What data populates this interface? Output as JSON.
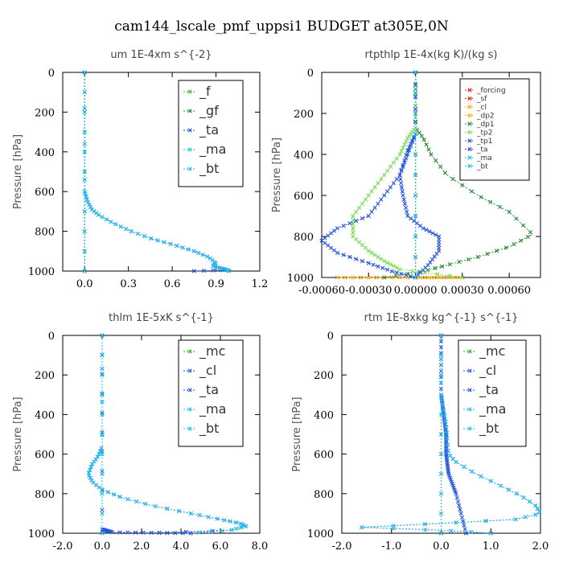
{
  "title": "cam144_lscale_pmf_uppsi1  BUDGET at305E,0N",
  "colors": {
    "green": "#22bb22",
    "blue": "#2255dd",
    "cyan": "#22bbee",
    "red": "#dd2222",
    "orange": "#ffaa00",
    "lightgreen": "#77dd55",
    "darkgreen": "#228833"
  },
  "chart_data": [
    {
      "type": "line",
      "title": "um   1E-4xm s^{-2}",
      "ylabel": "Pressure [hPa]",
      "xlim": [
        -0.15,
        1.2
      ],
      "ylim": [
        1000,
        0
      ],
      "xticks": [
        0.0,
        0.3,
        0.6,
        0.9,
        1.2
      ],
      "xticklabels": [
        "0.0",
        "0.3",
        "0.6",
        "0.9",
        "1.2"
      ],
      "yticks": [
        0,
        200,
        400,
        600,
        800,
        1000
      ],
      "yticklabels": [
        "0",
        "200",
        "400",
        "600",
        "800",
        "1000"
      ],
      "legend_size": "large",
      "series": [
        {
          "name": "_f",
          "color": "green",
          "x": [
            0,
            0
          ],
          "y": [
            0,
            1000
          ]
        },
        {
          "name": "_gf",
          "color": "darkgreen",
          "x": [
            0,
            0
          ],
          "y": [
            0,
            1000
          ]
        },
        {
          "name": "_ta",
          "color": "blue",
          "x": [
            0,
            0,
            0.02,
            0.05,
            0.1,
            0.2,
            0.32,
            0.47,
            0.62,
            0.75,
            0.85,
            0.9,
            0.88,
            0.93,
            0.97,
            0.75
          ],
          "y": [
            0,
            600,
            650,
            690,
            720,
            760,
            800,
            840,
            870,
            900,
            930,
            960,
            975,
            985,
            995,
            1000
          ]
        },
        {
          "name": "_ma",
          "color": "cyan",
          "x": [
            0,
            0
          ],
          "y": [
            0,
            1000
          ]
        },
        {
          "name": "_bt",
          "color": "cyan",
          "x": [
            0,
            0,
            0.02,
            0.05,
            0.1,
            0.2,
            0.32,
            0.47,
            0.62,
            0.75,
            0.85,
            0.9,
            0.88,
            0.93,
            0.98,
            0.99
          ],
          "y": [
            0,
            600,
            650,
            690,
            720,
            760,
            800,
            840,
            870,
            900,
            930,
            960,
            975,
            985,
            995,
            1000
          ]
        }
      ]
    },
    {
      "type": "line",
      "title": "rtpthlp   1E-4x(kg K)/(kg s)",
      "ylabel": "Pressure [hPa]",
      "xlim": [
        -0.0006,
        0.0008
      ],
      "ylim": [
        1000,
        0
      ],
      "xticks": [
        -0.0006,
        -0.0003,
        0,
        0.0003,
        0.0006
      ],
      "xticklabels": [
        "-0.00060",
        "-0.00030",
        "0.00000",
        "0.00030",
        "0.00060"
      ],
      "yticks": [
        0,
        200,
        400,
        600,
        800,
        1000
      ],
      "yticklabels": [
        "0",
        "200",
        "400",
        "600",
        "800",
        "1000"
      ],
      "legend_size": "small",
      "series": [
        {
          "name": "_forcing",
          "color": "red",
          "x": [
            0,
            0
          ],
          "y": [
            0,
            1000
          ]
        },
        {
          "name": "_sf",
          "color": "red",
          "x": [
            0,
            0
          ],
          "y": [
            0,
            1000
          ]
        },
        {
          "name": "_cl",
          "color": "orange",
          "x": [
            -0.0005,
            0,
            0.0003
          ],
          "y": [
            1000,
            1000,
            1000
          ]
        },
        {
          "name": "_dp2",
          "color": "orange",
          "x": [
            0,
            0
          ],
          "y": [
            0,
            1000
          ]
        },
        {
          "name": "_dp1",
          "color": "darkgreen",
          "x": [
            0,
            0,
            5e-05,
            0.0001,
            0.0002,
            0.0004,
            0.0006,
            0.00075,
            0.0006,
            0.0004,
            0.0002,
            5e-05,
            -0.0002
          ],
          "y": [
            0,
            270,
            320,
            400,
            500,
            600,
            680,
            790,
            850,
            900,
            940,
            970,
            1000
          ]
        },
        {
          "name": "_tp2",
          "color": "lightgreen",
          "x": [
            0,
            0,
            -5e-05,
            -0.0001,
            -0.0002,
            -0.0003,
            -0.0004,
            -0.0004,
            -0.0003,
            -0.0002,
            -0.0001,
            0.0003
          ],
          "y": [
            0,
            270,
            320,
            400,
            500,
            600,
            700,
            800,
            870,
            920,
            960,
            1000
          ]
        },
        {
          "name": "_tp1",
          "color": "blue",
          "x": [
            0,
            0,
            -5e-05,
            -0.0001,
            -0.0002,
            -0.0003,
            -0.0005,
            -0.0006,
            -0.0005,
            -0.0003,
            -0.00015,
            0
          ],
          "y": [
            0,
            300,
            400,
            500,
            600,
            700,
            760,
            820,
            880,
            930,
            970,
            1000
          ]
        },
        {
          "name": "_ta",
          "color": "blue",
          "x": [
            0,
            0,
            -5e-05,
            -0.0001,
            -8e-05,
            -5e-05,
            5e-05,
            0.00015,
            0.00015,
            8e-05,
            0
          ],
          "y": [
            0,
            300,
            380,
            500,
            600,
            700,
            760,
            800,
            870,
            940,
            1000
          ]
        },
        {
          "name": "_ma",
          "color": "cyan",
          "x": [
            0,
            0
          ],
          "y": [
            0,
            1000
          ]
        },
        {
          "name": "_bt",
          "color": "cyan",
          "x": [
            0,
            0
          ],
          "y": [
            0,
            1000
          ]
        }
      ]
    },
    {
      "type": "line",
      "title": "thlm   1E-5xK s^{-1}",
      "ylabel": "Pressure [hPa]",
      "xlim": [
        -2.0,
        8.0
      ],
      "ylim": [
        1000,
        0
      ],
      "xticks": [
        -2.0,
        0.0,
        2.0,
        4.0,
        6.0,
        8.0
      ],
      "xticklabels": [
        "-2.0",
        "0.0",
        "2.0",
        "4.0",
        "6.0",
        "8.0"
      ],
      "yticks": [
        0,
        200,
        400,
        600,
        800,
        1000
      ],
      "yticklabels": [
        "0",
        "200",
        "400",
        "600",
        "800",
        "1000"
      ],
      "legend_size": "large",
      "series": [
        {
          "name": "_mc",
          "color": "green",
          "x": [
            0,
            0
          ],
          "y": [
            0,
            1000
          ]
        },
        {
          "name": "_cl",
          "color": "blue",
          "x": [
            0,
            0,
            -0.2,
            -0.5,
            -0.7,
            -0.5,
            0,
            1,
            2.5,
            4.5,
            6,
            7,
            7.3,
            6.5,
            2
          ],
          "y": [
            0,
            560,
            610,
            650,
            700,
            740,
            780,
            820,
            860,
            900,
            930,
            950,
            965,
            985,
            1000
          ]
        },
        {
          "name": "_ta",
          "color": "blue",
          "x": [
            0,
            0,
            0.5,
            4.5
          ],
          "y": [
            0,
            980,
            995,
            1000
          ]
        },
        {
          "name": "_ma",
          "color": "cyan",
          "x": [
            0,
            0
          ],
          "y": [
            0,
            1000
          ]
        },
        {
          "name": "_bt",
          "color": "cyan",
          "x": [
            0,
            0,
            -0.2,
            -0.5,
            -0.7,
            -0.5,
            0,
            1,
            2.5,
            4.5,
            6,
            7,
            7.3,
            6.5,
            4.5
          ],
          "y": [
            0,
            560,
            610,
            650,
            700,
            740,
            780,
            820,
            860,
            900,
            930,
            950,
            965,
            985,
            1000
          ]
        }
      ]
    },
    {
      "type": "line",
      "title": "rtm   1E-8xkg kg^{-1} s^{-1}",
      "ylabel": "Pressure [hPa]",
      "xlim": [
        -2.0,
        2.0
      ],
      "ylim": [
        1000,
        0
      ],
      "xticks": [
        -2.0,
        -1.0,
        0.0,
        1.0,
        2.0
      ],
      "xticklabels": [
        "-2.0",
        "-1.0",
        "0.0",
        "1.0",
        "2.0"
      ],
      "yticks": [
        0,
        200,
        400,
        600,
        800,
        1000
      ],
      "yticklabels": [
        "0",
        "200",
        "400",
        "600",
        "800",
        "1000"
      ],
      "legend_size": "large",
      "series": [
        {
          "name": "_mc",
          "color": "green",
          "x": [
            0,
            0
          ],
          "y": [
            0,
            1000
          ]
        },
        {
          "name": "_cl",
          "color": "blue",
          "x": [
            0,
            0,
            0.05,
            0.1,
            0.12,
            0.15,
            0.3,
            0.7,
            1.2,
            1.6,
            1.9,
            2.0,
            1.5,
            0,
            -1.6,
            0,
            1
          ],
          "y": [
            0,
            300,
            380,
            450,
            520,
            600,
            640,
            700,
            760,
            810,
            860,
            900,
            930,
            950,
            970,
            985,
            1000
          ]
        },
        {
          "name": "_ta",
          "color": "blue",
          "x": [
            0,
            0,
            0.05,
            0.1,
            0.1,
            0.15,
            0.3,
            0.5
          ],
          "y": [
            0,
            300,
            400,
            500,
            600,
            700,
            800,
            1000
          ]
        },
        {
          "name": "_ma",
          "color": "cyan",
          "x": [
            0,
            0
          ],
          "y": [
            0,
            1000
          ]
        },
        {
          "name": "_bt",
          "color": "cyan",
          "x": [
            0,
            0,
            0.05,
            0.1,
            0.12,
            0.15,
            0.3,
            0.7,
            1.2,
            1.6,
            1.9,
            2.0,
            1.5,
            0,
            -1.6,
            0,
            1
          ],
          "y": [
            0,
            300,
            380,
            450,
            520,
            600,
            640,
            700,
            760,
            810,
            860,
            900,
            930,
            950,
            970,
            985,
            1000
          ]
        }
      ]
    }
  ]
}
